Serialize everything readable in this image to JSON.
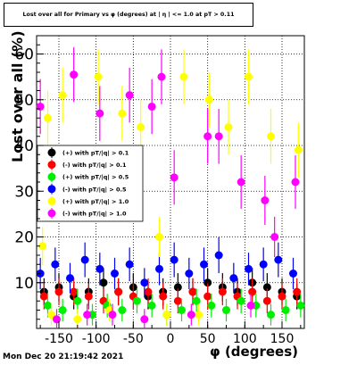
{
  "chart_data": {
    "type": "scatter",
    "title": "Lost over all for Primary vs φ (degrees) at | η | <= 1.0 at pT > 0.11",
    "xlabel": "φ (degrees)",
    "ylabel": "Lost over all (%)",
    "xlim": [
      -180,
      180
    ],
    "ylim": [
      0,
      64
    ],
    "xticks": [
      -150,
      -100,
      -50,
      0,
      50,
      100,
      150
    ],
    "yticks": [
      0,
      10,
      20,
      30,
      40,
      50,
      60
    ],
    "grid": true,
    "legend_position": "left",
    "series": [
      {
        "name": "(+) with pT/|q| > 0.1",
        "color": "#000000",
        "x": [
          -170,
          -150,
          -130,
          -110,
          -90,
          -70,
          -50,
          -30,
          -10,
          10,
          30,
          50,
          70,
          90,
          110,
          130,
          150,
          170
        ],
        "y": [
          8,
          9,
          7,
          8,
          10,
          8,
          9,
          7,
          8,
          9,
          8,
          10,
          9,
          8,
          10,
          9,
          8,
          7
        ]
      },
      {
        "name": "(-) with pT/|q| > 0.1",
        "color": "#ff0000",
        "x": [
          -170,
          -150,
          -130,
          -110,
          -90,
          -70,
          -50,
          -30,
          -10,
          10,
          30,
          50,
          70,
          90,
          110,
          130,
          150,
          170
        ],
        "y": [
          7,
          8,
          8,
          7,
          6,
          8,
          7,
          8,
          7,
          6,
          8,
          7,
          8,
          7,
          8,
          6,
          7,
          8
        ]
      },
      {
        "name": "(+) with pT/|q| > 0.5",
        "color": "#00ee00",
        "x": [
          -165,
          -145,
          -125,
          -105,
          -85,
          -65,
          -45,
          -25,
          -5,
          15,
          35,
          55,
          75,
          95,
          115,
          135,
          155,
          175
        ],
        "y": [
          5,
          4,
          6,
          3,
          5,
          4,
          6,
          5,
          3,
          4,
          6,
          5,
          4,
          6,
          5,
          3,
          4,
          5
        ]
      },
      {
        "name": "(-) with pT/|q| > 0.5",
        "color": "#0000ff",
        "x": [
          -175,
          -155,
          -135,
          -115,
          -95,
          -75,
          -55,
          -35,
          -15,
          5,
          25,
          45,
          65,
          85,
          105,
          125,
          145,
          165
        ],
        "y": [
          12,
          14,
          11,
          15,
          13,
          12,
          14,
          10,
          13,
          15,
          12,
          14,
          16,
          11,
          13,
          14,
          15,
          12
        ]
      },
      {
        "name": "(+) with pT/|q| > 1.0",
        "color": "#ffff00",
        "x": [
          -172,
          -165,
          -160,
          -145,
          -125,
          -97,
          -82,
          -65,
          -40,
          -15,
          -5,
          18,
          38,
          52,
          78,
          105,
          135,
          172
        ],
        "y": [
          18,
          46,
          3,
          51,
          2,
          55,
          4,
          47,
          44,
          20,
          3,
          55,
          3,
          50,
          44,
          55,
          42,
          39
        ]
      },
      {
        "name": "(-) with pT/|q| > 1.0",
        "color": "#ff00ff",
        "x": [
          -175,
          -153,
          -130,
          -112,
          -95,
          -78,
          -55,
          -35,
          -25,
          -12,
          5,
          28,
          50,
          65,
          95,
          108,
          127,
          140,
          168
        ],
        "y": [
          48.5,
          2,
          55.5,
          3,
          47,
          3,
          51,
          2,
          48.5,
          55,
          33,
          3,
          42,
          42,
          32,
          5,
          28,
          20,
          32
        ]
      }
    ]
  },
  "footer": {
    "timestamp": "Mon Dec 20 21:19:42 2021"
  }
}
